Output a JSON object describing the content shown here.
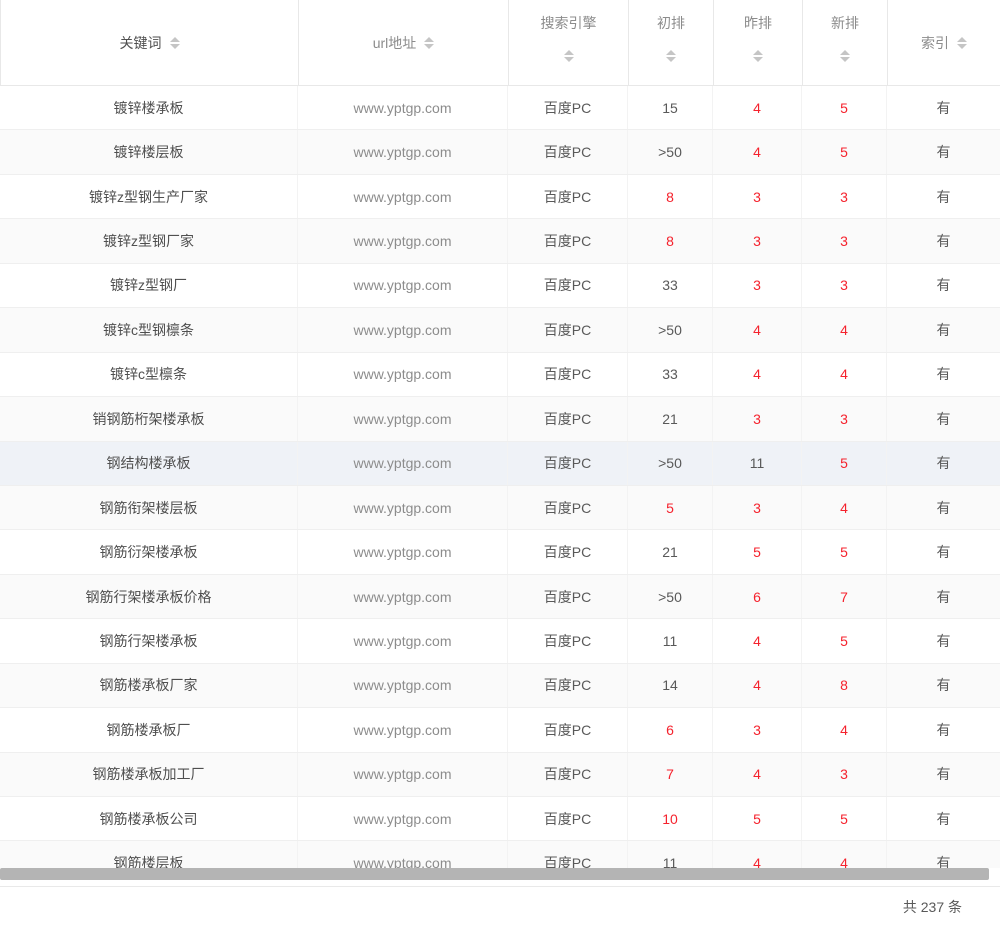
{
  "table": {
    "columns": [
      {
        "label": "关键词"
      },
      {
        "label": "url地址"
      },
      {
        "label": "搜索引擎"
      },
      {
        "label": "初排"
      },
      {
        "label": "昨排"
      },
      {
        "label": "新排"
      },
      {
        "label": "索引"
      }
    ],
    "rows": [
      {
        "keyword": "镀锌楼承板",
        "url": "www.yptgp.com",
        "engine": "百度PC",
        "init": {
          "v": "15",
          "red": false
        },
        "yesterday": {
          "v": "4",
          "red": true
        },
        "new": {
          "v": "5",
          "red": true
        },
        "index": "有",
        "highlight": false
      },
      {
        "keyword": "镀锌楼层板",
        "url": "www.yptgp.com",
        "engine": "百度PC",
        "init": {
          "v": ">50",
          "red": false
        },
        "yesterday": {
          "v": "4",
          "red": true
        },
        "new": {
          "v": "5",
          "red": true
        },
        "index": "有",
        "highlight": false
      },
      {
        "keyword": "镀锌z型钢生产厂家",
        "url": "www.yptgp.com",
        "engine": "百度PC",
        "init": {
          "v": "8",
          "red": true
        },
        "yesterday": {
          "v": "3",
          "red": true
        },
        "new": {
          "v": "3",
          "red": true
        },
        "index": "有",
        "highlight": false
      },
      {
        "keyword": "镀锌z型钢厂家",
        "url": "www.yptgp.com",
        "engine": "百度PC",
        "init": {
          "v": "8",
          "red": true
        },
        "yesterday": {
          "v": "3",
          "red": true
        },
        "new": {
          "v": "3",
          "red": true
        },
        "index": "有",
        "highlight": false
      },
      {
        "keyword": "镀锌z型钢厂",
        "url": "www.yptgp.com",
        "engine": "百度PC",
        "init": {
          "v": "33",
          "red": false
        },
        "yesterday": {
          "v": "3",
          "red": true
        },
        "new": {
          "v": "3",
          "red": true
        },
        "index": "有",
        "highlight": false
      },
      {
        "keyword": "镀锌c型钢檩条",
        "url": "www.yptgp.com",
        "engine": "百度PC",
        "init": {
          "v": ">50",
          "red": false
        },
        "yesterday": {
          "v": "4",
          "red": true
        },
        "new": {
          "v": "4",
          "red": true
        },
        "index": "有",
        "highlight": false
      },
      {
        "keyword": "镀锌c型檩条",
        "url": "www.yptgp.com",
        "engine": "百度PC",
        "init": {
          "v": "33",
          "red": false
        },
        "yesterday": {
          "v": "4",
          "red": true
        },
        "new": {
          "v": "4",
          "red": true
        },
        "index": "有",
        "highlight": false
      },
      {
        "keyword": "销钢筋桁架楼承板",
        "url": "www.yptgp.com",
        "engine": "百度PC",
        "init": {
          "v": "21",
          "red": false
        },
        "yesterday": {
          "v": "3",
          "red": true
        },
        "new": {
          "v": "3",
          "red": true
        },
        "index": "有",
        "highlight": false
      },
      {
        "keyword": "钢结构楼承板",
        "url": "www.yptgp.com",
        "engine": "百度PC",
        "init": {
          "v": ">50",
          "red": false
        },
        "yesterday": {
          "v": "11",
          "red": false
        },
        "new": {
          "v": "5",
          "red": true
        },
        "index": "有",
        "highlight": true
      },
      {
        "keyword": "钢筋衔架楼层板",
        "url": "www.yptgp.com",
        "engine": "百度PC",
        "init": {
          "v": "5",
          "red": true
        },
        "yesterday": {
          "v": "3",
          "red": true
        },
        "new": {
          "v": "4",
          "red": true
        },
        "index": "有",
        "highlight": false
      },
      {
        "keyword": "钢筋衍架楼承板",
        "url": "www.yptgp.com",
        "engine": "百度PC",
        "init": {
          "v": "21",
          "red": false
        },
        "yesterday": {
          "v": "5",
          "red": true
        },
        "new": {
          "v": "5",
          "red": true
        },
        "index": "有",
        "highlight": false
      },
      {
        "keyword": "钢筋行架楼承板价格",
        "url": "www.yptgp.com",
        "engine": "百度PC",
        "init": {
          "v": ">50",
          "red": false
        },
        "yesterday": {
          "v": "6",
          "red": true
        },
        "new": {
          "v": "7",
          "red": true
        },
        "index": "有",
        "highlight": false
      },
      {
        "keyword": "钢筋行架楼承板",
        "url": "www.yptgp.com",
        "engine": "百度PC",
        "init": {
          "v": "11",
          "red": false
        },
        "yesterday": {
          "v": "4",
          "red": true
        },
        "new": {
          "v": "5",
          "red": true
        },
        "index": "有",
        "highlight": false
      },
      {
        "keyword": "钢筋楼承板厂家",
        "url": "www.yptgp.com",
        "engine": "百度PC",
        "init": {
          "v": "14",
          "red": false
        },
        "yesterday": {
          "v": "4",
          "red": true
        },
        "new": {
          "v": "8",
          "red": true
        },
        "index": "有",
        "highlight": false
      },
      {
        "keyword": "钢筋楼承板厂",
        "url": "www.yptgp.com",
        "engine": "百度PC",
        "init": {
          "v": "6",
          "red": true
        },
        "yesterday": {
          "v": "3",
          "red": true
        },
        "new": {
          "v": "4",
          "red": true
        },
        "index": "有",
        "highlight": false
      },
      {
        "keyword": "钢筋楼承板加工厂",
        "url": "www.yptgp.com",
        "engine": "百度PC",
        "init": {
          "v": "7",
          "red": true
        },
        "yesterday": {
          "v": "4",
          "red": true
        },
        "new": {
          "v": "3",
          "red": true
        },
        "index": "有",
        "highlight": false
      },
      {
        "keyword": "钢筋楼承板公司",
        "url": "www.yptgp.com",
        "engine": "百度PC",
        "init": {
          "v": "10",
          "red": true
        },
        "yesterday": {
          "v": "5",
          "red": true
        },
        "new": {
          "v": "5",
          "red": true
        },
        "index": "有",
        "highlight": false
      },
      {
        "keyword": "钢筋楼层板",
        "url": "www.yptgp.com",
        "engine": "百度PC",
        "init": {
          "v": "11",
          "red": false
        },
        "yesterday": {
          "v": "4",
          "red": true
        },
        "new": {
          "v": "4",
          "red": true
        },
        "index": "有",
        "highlight": false
      }
    ]
  },
  "footer": {
    "total_label": "共 237 条"
  },
  "colors": {
    "rank_red": "#f5222d",
    "row_alt_bg": "#fafafa",
    "row_highlight_bg": "#eff2f7",
    "scrollbar_thumb": "#b4b4b4"
  }
}
